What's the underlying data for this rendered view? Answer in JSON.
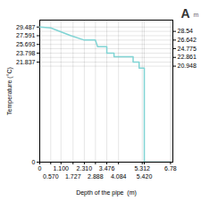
{
  "chart_data": {
    "type": "line",
    "xlabel": "Depth of the pipe  (m)",
    "ylabel": "Temperature (°C)",
    "x": [
      0.0,
      0.57,
      1.62,
      2.31,
      2.88,
      3.0,
      3.476,
      3.476,
      3.85,
      3.85,
      4.84,
      4.84,
      5.15,
      5.15,
      5.42,
      5.42,
      6.78
    ],
    "values": [
      29.487,
      29.3,
      27.591,
      26.642,
      26.642,
      25.2,
      25.2,
      23.798,
      23.798,
      23.0,
      23.0,
      21.837,
      21.837,
      20.5,
      20.5,
      0.0,
      0.0
    ],
    "color": "#80d4d4",
    "xlim": [
      0,
      6.9
    ],
    "ylim": [
      0,
      31.0
    ],
    "xticks": [
      0,
      {
        "value": 0.57,
        "label": "0.570"
      },
      {
        "value": 1.1,
        "label": "1.100"
      },
      1.727,
      {
        "value": 2.31,
        "label": "2.310"
      },
      2.888,
      3.476,
      4.084,
      5.312,
      {
        "value": 5.42,
        "label": "5.420"
      },
      6.78
    ],
    "yticks": [
      0,
      20.948,
      21.837,
      22.861,
      23.798,
      24.775,
      25.693,
      26.642,
      27.591,
      28.54,
      29.487
    ],
    "grid": true,
    "annotations": [
      "A",
      "m"
    ]
  }
}
